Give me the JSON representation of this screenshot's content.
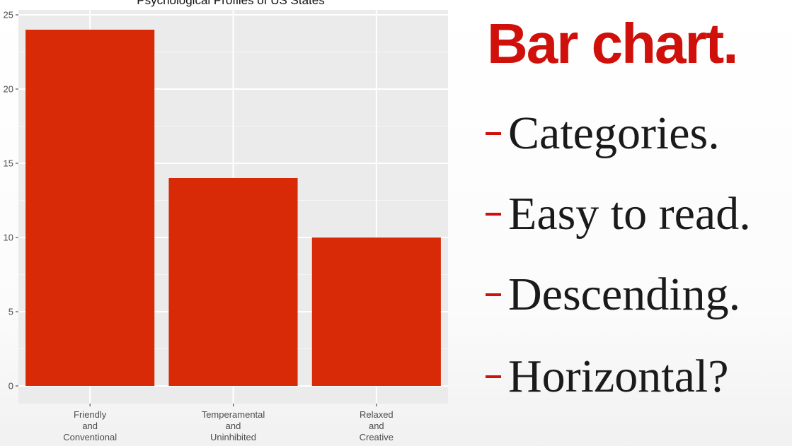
{
  "chart_data": {
    "type": "bar",
    "title": "Psychological Profiles of US States",
    "categories": [
      [
        "Friendly",
        "and",
        "Conventional"
      ],
      [
        "Temperamental",
        "and",
        "Uninhibited"
      ],
      [
        "Relaxed",
        "and",
        "Creative"
      ]
    ],
    "values": [
      24,
      14,
      10
    ],
    "ylim": [
      0,
      25
    ],
    "yticks": [
      0,
      5,
      10,
      15,
      20,
      25
    ],
    "xlabel": "",
    "ylabel": "",
    "grid": true,
    "bar_color": "#d82a06",
    "panel_color": "#ebebeb"
  },
  "slide": {
    "heading": "Bar chart.",
    "bullets": [
      "Categories.",
      "Easy to read.",
      "Descending.",
      "Horizontal?"
    ],
    "accent_color": "#d0100a"
  }
}
